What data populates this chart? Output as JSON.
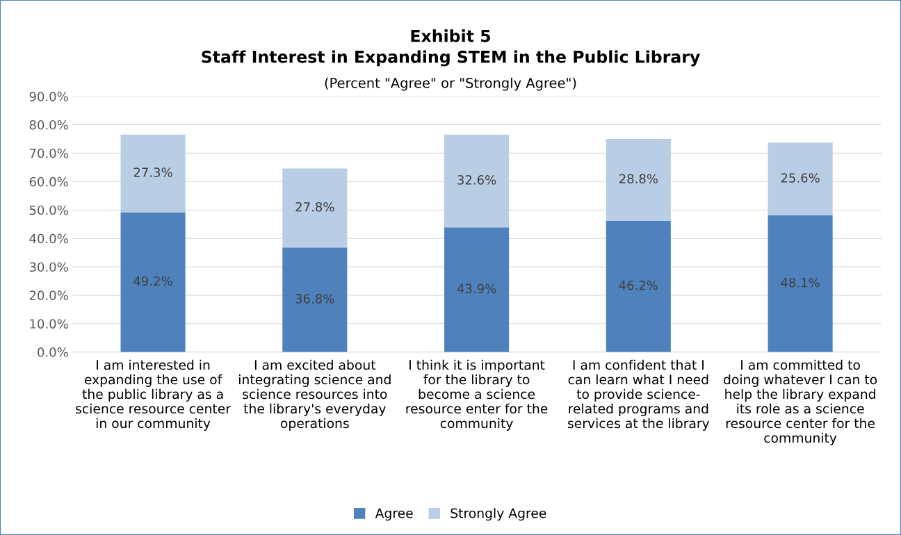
{
  "chart_data": {
    "type": "bar",
    "title": "Exhibit 5\nStaff Interest in Expanding STEM in the Public Library",
    "subtitle": "(Percent \"Agree\" or \"Strongly Agree\")",
    "categories": [
      "I am interested in\nexpanding the use of\nthe public library as a\nscience resource center\nin our community",
      "I am excited about\nintegrating science and\nscience resources into\nthe library's everyday\noperations",
      "I think it is important\nfor the library to\nbecome a science\nresource enter for the\ncommunity",
      "I am confident that I\ncan learn what I need\nto provide science-\nrelated programs and\nservices at the library",
      "I am committed to\ndoing whatever I can to\nhelp the library expand\nits role as a science\nresource center for the\ncommunity"
    ],
    "series": [
      {
        "name": "Agree",
        "color": "#4f81bd",
        "values": [
          49.2,
          36.8,
          43.9,
          46.2,
          48.1
        ],
        "value_labels": [
          "49.2%",
          "36.8%",
          "43.9%",
          "46.2%",
          "48.1%"
        ]
      },
      {
        "name": "Strongly Agree",
        "color": "#b9cde5",
        "values": [
          27.3,
          27.8,
          32.6,
          28.8,
          25.6
        ],
        "value_labels": [
          "27.3%",
          "27.8%",
          "32.6%",
          "28.8%",
          "25.6%"
        ]
      }
    ],
    "stacked": true,
    "ylim": [
      0,
      90
    ],
    "yticks": [
      {
        "value": 0,
        "label": "0.0%"
      },
      {
        "value": 10,
        "label": "10.0%"
      },
      {
        "value": 20,
        "label": "20.0%"
      },
      {
        "value": 30,
        "label": "30.0%"
      },
      {
        "value": 40,
        "label": "40.0%"
      },
      {
        "value": 50,
        "label": "50.0%"
      },
      {
        "value": 60,
        "label": "60.0%"
      },
      {
        "value": 70,
        "label": "70.0%"
      },
      {
        "value": 80,
        "label": "80.0%"
      },
      {
        "value": 90,
        "label": "90.0%"
      }
    ],
    "grid": "y",
    "legend": "bottom"
  }
}
